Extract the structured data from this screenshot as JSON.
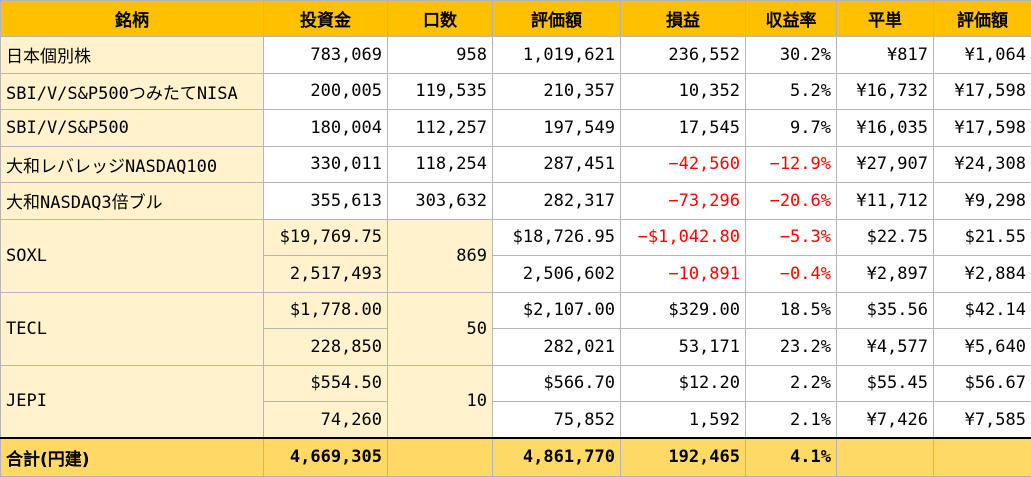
{
  "headers": [
    "銘柄",
    "投資金",
    "口数",
    "評価額",
    "損益",
    "収益率",
    "平単",
    "評価額"
  ],
  "rows": [
    {
      "name": "日本個別株",
      "invest": "783,069",
      "units": "958",
      "value": "1,019,621",
      "pl": "236,552",
      "rate": "30.2%",
      "avg": "¥817",
      "price": "¥1,064"
    },
    {
      "name": "SBI/V/S&P500つみたてNISA",
      "invest": "200,005",
      "units": "119,535",
      "value": "210,357",
      "pl": "10,352",
      "rate": "5.2%",
      "avg": "¥16,732",
      "price": "¥17,598"
    },
    {
      "name": "SBI/V/S&P500",
      "invest": "180,004",
      "units": "112,257",
      "value": "197,549",
      "pl": "17,545",
      "rate": "9.7%",
      "avg": "¥16,035",
      "price": "¥17,598"
    },
    {
      "name": "大和レバレッジNASDAQ100",
      "invest": "330,011",
      "units": "118,254",
      "value": "287,451",
      "pl": "−42,560",
      "rate": "−12.9%",
      "avg": "¥27,907",
      "price": "¥24,308"
    },
    {
      "name": "大和NASDAQ3倍ブル",
      "invest": "355,613",
      "units": "303,632",
      "value": "282,317",
      "pl": "−73,296",
      "rate": "−20.6%",
      "avg": "¥11,712",
      "price": "¥9,298"
    }
  ],
  "foreign": [
    {
      "name": "SOXL",
      "units": "869",
      "usd": {
        "invest": "$19,769.75",
        "value": "$18,726.95",
        "pl": "−$1,042.80",
        "rate": "−5.3%",
        "avg": "$22.75",
        "price": "$21.55"
      },
      "jpy": {
        "invest": "2,517,493",
        "value": "2,506,602",
        "pl": "−10,891",
        "rate": "−0.4%",
        "avg": "¥2,897",
        "price": "¥2,884"
      }
    },
    {
      "name": "TECL",
      "units": "50",
      "usd": {
        "invest": "$1,778.00",
        "value": "$2,107.00",
        "pl": "$329.00",
        "rate": "18.5%",
        "avg": "$35.56",
        "price": "$42.14"
      },
      "jpy": {
        "invest": "228,850",
        "value": "282,021",
        "pl": "53,171",
        "rate": "23.2%",
        "avg": "¥4,577",
        "price": "¥5,640"
      }
    },
    {
      "name": "JEPI",
      "units": "10",
      "usd": {
        "invest": "$554.50",
        "value": "$566.70",
        "pl": "$12.20",
        "rate": "2.2%",
        "avg": "$55.45",
        "price": "$56.67"
      },
      "jpy": {
        "invest": "74,260",
        "value": "75,852",
        "pl": "1,592",
        "rate": "2.1%",
        "avg": "¥7,426",
        "price": "¥7,585"
      }
    }
  ],
  "total": {
    "name": "合計(円建)",
    "invest": "4,669,305",
    "units": "",
    "value": "4,861,770",
    "pl": "192,465",
    "rate": "4.1%",
    "avg": "",
    "price": ""
  },
  "colors": {
    "header": "#ffc000",
    "tint": "#fff2cc",
    "total": "#ffd966",
    "negative": "#ff0000",
    "border": "#b5b5b5"
  }
}
